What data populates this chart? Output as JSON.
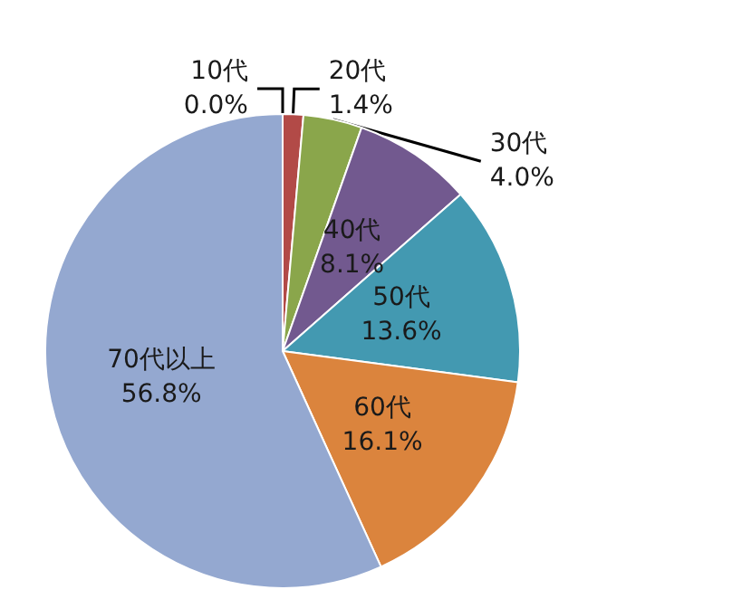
{
  "chart_data": {
    "type": "pie",
    "categories": [
      "10代",
      "20代",
      "30代",
      "40代",
      "50代",
      "60代",
      "70代以上"
    ],
    "values": [
      0.0,
      1.4,
      4.0,
      8.1,
      13.6,
      16.1,
      56.8
    ],
    "value_labels": [
      "0.0%",
      "1.4%",
      "4.0%",
      "8.1%",
      "13.6%",
      "16.1%",
      "56.8%"
    ],
    "colors": [
      "#4f81bd",
      "#b24a47",
      "#8aa64b",
      "#72598f",
      "#4399b1",
      "#db843d",
      "#94a8d0"
    ],
    "legend": false
  }
}
